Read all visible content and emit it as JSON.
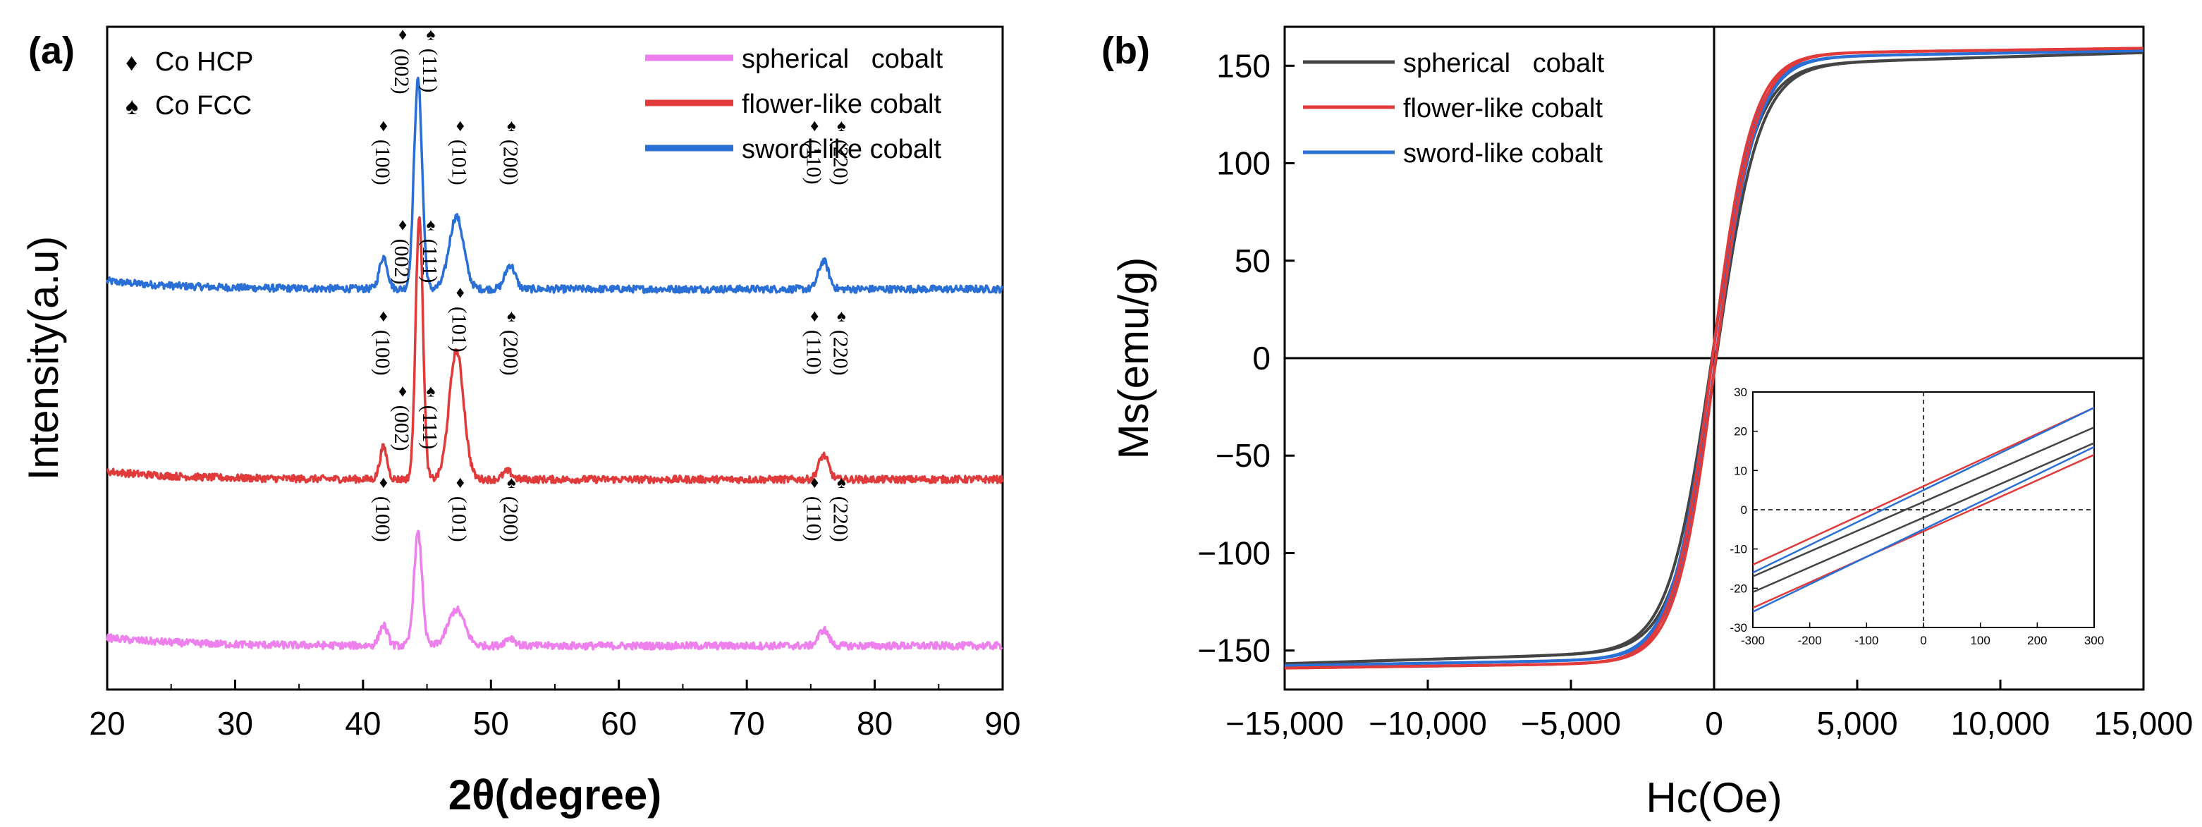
{
  "chart_data": [
    {
      "panel": "(a)",
      "type": "line",
      "xlabel": "2θ(degree)",
      "ylabel": "Intensity(a.u)",
      "xlim": [
        20,
        90
      ],
      "xticks": [
        20,
        30,
        40,
        50,
        60,
        70,
        80,
        90
      ],
      "grid": false,
      "phase_legend": [
        {
          "symbol": "♦",
          "label": "Co HCP"
        },
        {
          "symbol": "♠",
          "label": "Co FCC"
        }
      ],
      "legend": {
        "placement": "top-right",
        "entries": [
          "spherical   cobalt",
          "flower-like cobalt",
          "sword-like cobalt"
        ]
      },
      "series": [
        {
          "name": "sword-like cobalt",
          "color": "#2a6fd6",
          "baseline": 1.0,
          "peaks": [
            {
              "x": 41.6,
              "height": 0.08,
              "width": 0.45
            },
            {
              "x": 44.3,
              "height": 0.52,
              "width": 0.45
            },
            {
              "x": 47.3,
              "height": 0.18,
              "width": 0.8
            },
            {
              "x": 51.5,
              "height": 0.06,
              "width": 0.55
            },
            {
              "x": 76.0,
              "height": 0.07,
              "width": 0.55
            }
          ]
        },
        {
          "name": "flower-like cobalt",
          "color": "#e03a3a",
          "baseline": 0.5,
          "peaks": [
            {
              "x": 41.6,
              "height": 0.08,
              "width": 0.4
            },
            {
              "x": 44.4,
              "height": 0.66,
              "width": 0.4
            },
            {
              "x": 47.3,
              "height": 0.32,
              "width": 0.8
            },
            {
              "x": 51.3,
              "height": 0.02,
              "width": 0.5
            },
            {
              "x": 76.0,
              "height": 0.06,
              "width": 0.55
            }
          ]
        },
        {
          "name": "spherical   cobalt",
          "color": "#ee80ee",
          "baseline": 0.0,
          "peaks": [
            {
              "x": 41.6,
              "height": 0.05,
              "width": 0.45
            },
            {
              "x": 44.3,
              "height": 0.28,
              "width": 0.45
            },
            {
              "x": 47.3,
              "height": 0.09,
              "width": 0.9
            },
            {
              "x": 51.5,
              "height": 0.02,
              "width": 0.55
            },
            {
              "x": 76.0,
              "height": 0.04,
              "width": 0.55
            }
          ]
        }
      ],
      "peak_labels": [
        {
          "hkl": "(100)",
          "symbol": "♦",
          "x": 41.6
        },
        {
          "hkl": "(002)",
          "symbol": "♦",
          "x": 43.1
        },
        {
          "hkl": "(111)",
          "symbol": "♠",
          "x": 45.3
        },
        {
          "hkl": "(101)",
          "symbol": "♦",
          "x": 47.6
        },
        {
          "hkl": "(200)",
          "symbol": "♠",
          "x": 51.6
        },
        {
          "hkl": "(110)",
          "symbol": "♦",
          "x": 75.3
        },
        {
          "hkl": "(220)",
          "symbol": "♠",
          "x": 77.4
        }
      ]
    },
    {
      "panel": "(b)",
      "type": "line",
      "xlabel": "Hc(Oe)",
      "ylabel": "Ms(emu/g)",
      "xlim": [
        -15000,
        15000
      ],
      "ylim": [
        -170,
        170
      ],
      "xticks": [
        -15000,
        -10000,
        -5000,
        0,
        5000,
        10000,
        15000
      ],
      "xtick_labels": [
        "−15,000",
        "−10,000",
        "−5,000",
        "0",
        "5,000",
        "10,000",
        "15,000"
      ],
      "yticks": [
        -150,
        -100,
        -50,
        0,
        50,
        100,
        150
      ],
      "ytick_labels": [
        "−150",
        "−100",
        "−50",
        "0",
        "50",
        "100",
        "150"
      ],
      "grid": false,
      "legend": {
        "placement": "top-left",
        "entries": [
          "spherical   cobalt",
          "flower-like cobalt",
          "sword-like cobalt"
        ]
      },
      "series": [
        {
          "name": "spherical   cobalt",
          "color": "#444444",
          "Ms": 150,
          "Hc": 75,
          "a": 1500,
          "chi": 0.00045
        },
        {
          "name": "flower-like cobalt",
          "color": "#e03a3a",
          "Ms": 156,
          "Hc": 60,
          "a": 1380,
          "chi": 0.0002
        },
        {
          "name": "sword-like cobalt",
          "color": "#2a6fd6",
          "Ms": 154,
          "Hc": 55,
          "a": 1420,
          "chi": 0.00025
        }
      ],
      "inset": {
        "xlim": [
          -300,
          300
        ],
        "ylim": [
          -30,
          30
        ],
        "xticks": [
          -300,
          -200,
          -100,
          0,
          100,
          200,
          300
        ],
        "xtick_labels": [
          "-300",
          "-200",
          "-100",
          "0",
          "100",
          "200",
          "300"
        ],
        "yticks": [
          -30,
          -20,
          -10,
          0,
          10,
          20,
          30
        ],
        "ytick_labels": [
          "-30",
          "-20",
          "-10",
          "0",
          "10",
          "20",
          "30"
        ],
        "lines": [
          {
            "series": "flower-like cobalt",
            "color": "#e03a3a",
            "branch": "upper",
            "y_at_min": -14,
            "y_at_max": 26
          },
          {
            "series": "sword-like cobalt",
            "color": "#2a6fd6",
            "branch": "upper",
            "y_at_min": -16,
            "y_at_max": 26
          },
          {
            "series": "spherical   cobalt",
            "color": "#444444",
            "branch": "upper",
            "y_at_min": -17,
            "y_at_max": 21
          },
          {
            "series": "spherical   cobalt",
            "color": "#444444",
            "branch": "lower",
            "y_at_min": -21,
            "y_at_max": 17
          },
          {
            "series": "flower-like cobalt",
            "color": "#e03a3a",
            "branch": "lower",
            "y_at_min": -25,
            "y_at_max": 14
          },
          {
            "series": "sword-like cobalt",
            "color": "#2a6fd6",
            "branch": "lower",
            "y_at_min": -26,
            "y_at_max": 16
          }
        ]
      }
    }
  ]
}
